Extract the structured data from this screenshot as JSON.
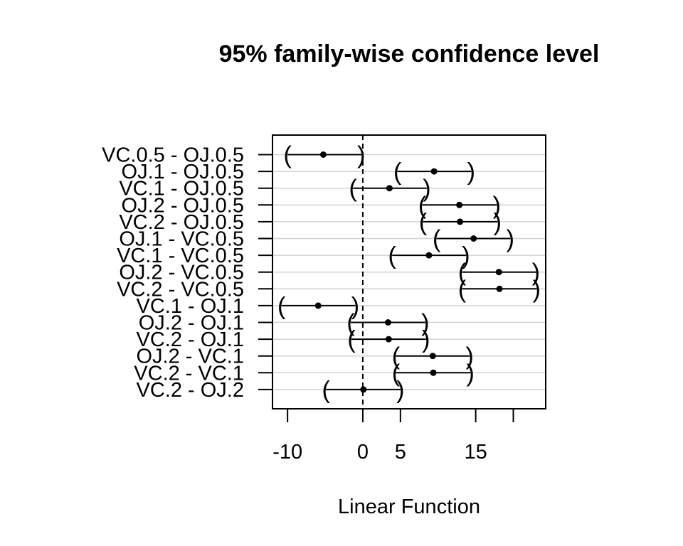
{
  "chart_data": {
    "type": "scatter",
    "title": "95% family-wise confidence level",
    "xlabel": "Linear Function",
    "ylabel": "",
    "xlim": [
      -12,
      24.3
    ],
    "x_ticks": [
      -10,
      0,
      5,
      15,
      20
    ],
    "x_tick_labels": [
      "-10",
      "0",
      "5",
      "15",
      ""
    ],
    "reference_line": 0,
    "grid": true,
    "comparisons": [
      {
        "label": "VC.0.5 - OJ.0.5",
        "estimate": -5.25,
        "lower": -10.0,
        "upper": -0.2
      },
      {
        "label": "OJ.1 - OJ.0.5",
        "estimate": 9.47,
        "lower": 4.6,
        "upper": 14.4
      },
      {
        "label": "VC.1 - OJ.0.5",
        "estimate": 3.54,
        "lower": -1.3,
        "upper": 8.5
      },
      {
        "label": "OJ.2 - OJ.0.5",
        "estimate": 12.83,
        "lower": 7.9,
        "upper": 17.8
      },
      {
        "label": "VC.2 - OJ.0.5",
        "estimate": 12.91,
        "lower": 8.0,
        "upper": 17.9
      },
      {
        "label": "OJ.1 - VC.0.5",
        "estimate": 14.72,
        "lower": 9.8,
        "upper": 19.6
      },
      {
        "label": "VC.1 - VC.0.5",
        "estimate": 8.79,
        "lower": 3.9,
        "upper": 13.7
      },
      {
        "label": "OJ.2 - VC.0.5",
        "estimate": 18.08,
        "lower": 13.2,
        "upper": 23.0
      },
      {
        "label": "VC.2 - VC.0.5",
        "estimate": 18.16,
        "lower": 13.2,
        "upper": 23.1
      },
      {
        "label": "VC.1 - OJ.1",
        "estimate": -5.93,
        "lower": -10.8,
        "upper": -1.0
      },
      {
        "label": "OJ.2 - OJ.1",
        "estimate": 3.36,
        "lower": -1.6,
        "upper": 8.3
      },
      {
        "label": "VC.2 - OJ.1",
        "estimate": 3.44,
        "lower": -1.5,
        "upper": 8.4
      },
      {
        "label": "OJ.2 - VC.1",
        "estimate": 9.29,
        "lower": 4.4,
        "upper": 14.2
      },
      {
        "label": "VC.2 - VC.1",
        "estimate": 9.37,
        "lower": 4.4,
        "upper": 14.3
      },
      {
        "label": "VC.2 - OJ.2",
        "estimate": 0.08,
        "lower": -4.9,
        "upper": 5.0
      }
    ],
    "colors": {
      "grid": "#d3d3d3",
      "ink": "#000000"
    }
  }
}
